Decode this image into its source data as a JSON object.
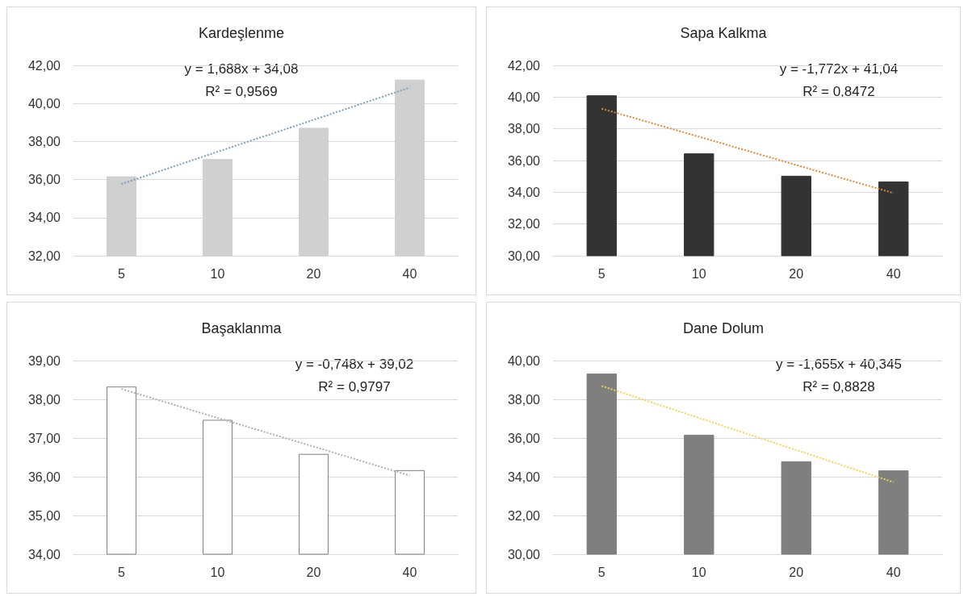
{
  "chart_data": [
    {
      "type": "bar",
      "title": "Kardeşlenme",
      "categories": [
        "5",
        "10",
        "20",
        "40"
      ],
      "ylim": [
        32,
        42
      ],
      "yticks": [
        {
          "value": 32,
          "label": "32,00"
        },
        {
          "value": 34,
          "label": "34,00"
        },
        {
          "value": 36,
          "label": "36,00"
        },
        {
          "value": 38,
          "label": "38,00"
        },
        {
          "value": 40,
          "label": "40,00"
        },
        {
          "value": 42,
          "label": "42,00"
        }
      ],
      "grid": "y",
      "annotations": [
        "y = 1,688x + 34,08",
        "R² = 0,9569"
      ],
      "series": [
        {
          "color": "#d0d0d0",
          "values": [
            36.17,
            37.08,
            38.72,
            41.25
          ]
        },
        {
          "type": "line",
          "color": "#7f9cbc",
          "line_style": "dotted",
          "marker": "none",
          "values": [
            35.77,
            37.46,
            39.14,
            40.83
          ]
        }
      ]
    },
    {
      "type": "bar",
      "title": "Sapa Kalkma",
      "categories": [
        "5",
        "10",
        "20",
        "40"
      ],
      "ylim": [
        30,
        42
      ],
      "yticks": [
        {
          "value": 30,
          "label": "30,00"
        },
        {
          "value": 32,
          "label": "32,00"
        },
        {
          "value": 34,
          "label": "34,00"
        },
        {
          "value": 36,
          "label": "36,00"
        },
        {
          "value": 38,
          "label": "38,00"
        },
        {
          "value": 40,
          "label": "40,00"
        },
        {
          "value": 42,
          "label": "42,00"
        }
      ],
      "grid": "y",
      "annotations": [
        "y = -1,772x + 41,04",
        "R² = 0,8472"
      ],
      "series": [
        {
          "color": "#333333",
          "values": [
            40.11,
            36.45,
            35.04,
            34.68
          ]
        },
        {
          "type": "line",
          "color": "#e0893a",
          "line_style": "dotted",
          "marker": "none",
          "values": [
            39.27,
            37.5,
            35.72,
            33.95
          ]
        }
      ]
    },
    {
      "type": "bar",
      "title": "Başaklanma",
      "categories": [
        "5",
        "10",
        "20",
        "40"
      ],
      "ylim": [
        34,
        39
      ],
      "yticks": [
        {
          "value": 34,
          "label": "34,00"
        },
        {
          "value": 35,
          "label": "35,00"
        },
        {
          "value": 36,
          "label": "36,00"
        },
        {
          "value": 37,
          "label": "37,00"
        },
        {
          "value": 38,
          "label": "38,00"
        },
        {
          "value": 39,
          "label": "39,00"
        }
      ],
      "grid": "y",
      "annotations": [
        "y = -0,748x + 39,02",
        "R² = 0,9797"
      ],
      "series": [
        {
          "color": "#ffffff",
          "values": [
            38.33,
            37.47,
            36.59,
            36.17
          ]
        },
        {
          "type": "line",
          "color": "#aab0b8",
          "line_style": "dotted",
          "marker": "none",
          "values": [
            38.27,
            37.52,
            36.78,
            36.03
          ]
        }
      ]
    },
    {
      "type": "bar",
      "title": "Dane Dolum",
      "categories": [
        "5",
        "10",
        "20",
        "40"
      ],
      "ylim": [
        30,
        40
      ],
      "yticks": [
        {
          "value": 30,
          "label": "30,00"
        },
        {
          "value": 32,
          "label": "32,00"
        },
        {
          "value": 34,
          "label": "34,00"
        },
        {
          "value": 36,
          "label": "36,00"
        },
        {
          "value": 38,
          "label": "38,00"
        },
        {
          "value": 40,
          "label": "40,00"
        }
      ],
      "grid": "y",
      "annotations": [
        "y = -1,655x + 40,345",
        "R² = 0,8828"
      ],
      "series": [
        {
          "color": "#7f7f7f",
          "values": [
            39.33,
            36.17,
            34.8,
            34.33
          ]
        },
        {
          "type": "line",
          "color": "#f2d45c",
          "line_style": "dotted",
          "marker": "none",
          "values": [
            38.69,
            37.04,
            35.38,
            33.72
          ]
        }
      ]
    }
  ]
}
